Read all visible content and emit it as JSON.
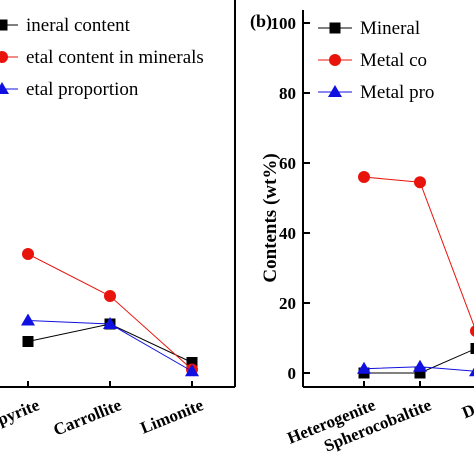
{
  "chart_data": [
    {
      "panel": "a",
      "type": "line",
      "categories": [
        "Chalcopyrite",
        "Carrollite",
        "Limonite"
      ],
      "category_labels": [
        "opyrite",
        "Carrollite",
        "Limonite"
      ],
      "series": [
        {
          "name": "Mineral content",
          "legend_label": "ineral content",
          "color": "#000000",
          "marker": "square",
          "values": [
            9,
            14,
            3
          ]
        },
        {
          "name": "Metal content in minerals",
          "legend_label": "etal content in minerals",
          "color": "#e8140c",
          "marker": "circle",
          "values": [
            34,
            22,
            1
          ]
        },
        {
          "name": "Metal proportion",
          "legend_label": "etal proportion",
          "color": "#1010e0",
          "marker": "triangle",
          "values": [
            15,
            14,
            0.5
          ]
        }
      ],
      "ylim": [
        0,
        100
      ],
      "grid": false,
      "legend_position": "top-left"
    },
    {
      "panel": "b",
      "panel_label": "(b)",
      "type": "line",
      "categories": [
        "Heterogenite",
        "Spherocobaltite",
        "Dolomite"
      ],
      "category_labels": [
        "Heterogenite",
        "Spherocobaltite",
        "Dol"
      ],
      "series": [
        {
          "name": "Mineral content",
          "legend_label": "Mineral",
          "color": "#000000",
          "marker": "square",
          "values": [
            0,
            0,
            7
          ]
        },
        {
          "name": "Metal content",
          "legend_label": "Metal co",
          "color": "#e8140c",
          "marker": "circle",
          "values": [
            56,
            54.5,
            12
          ]
        },
        {
          "name": "Metal proportion",
          "legend_label": "Metal pro",
          "color": "#1010e0",
          "marker": "triangle",
          "values": [
            1.2,
            1.8,
            0.5
          ]
        }
      ],
      "ylabel": "Contents (wt%)",
      "ylim": [
        0,
        100
      ],
      "yticks": [
        "0",
        "20",
        "40",
        "60",
        "80",
        "100"
      ],
      "grid": false,
      "legend_position": "top-right"
    }
  ]
}
